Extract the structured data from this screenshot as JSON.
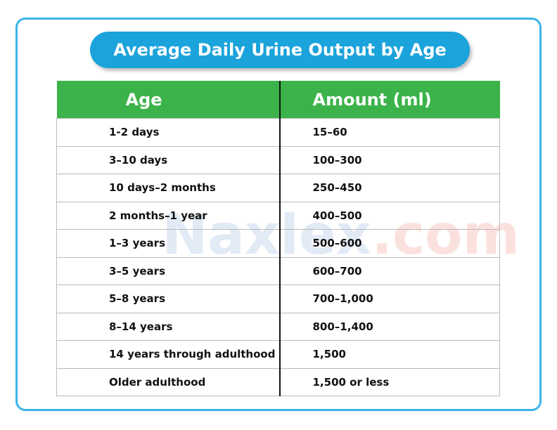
{
  "title": "Average Daily Urine Output by Age",
  "watermark": {
    "brand": "Naxlex",
    "suffix": ".com"
  },
  "table": {
    "header": [
      "Age",
      "Amount (ml)"
    ],
    "rows": [
      [
        "1-2 days",
        "15–60"
      ],
      [
        "3–10 days",
        "100–300"
      ],
      [
        "10 days–2 months",
        "250–450"
      ],
      [
        "2 months–1 year",
        "400–500"
      ],
      [
        "1–3 years",
        "500–600"
      ],
      [
        "3–5 years",
        "600–700"
      ],
      [
        "5–8 years",
        "700–1,000"
      ],
      [
        "8–14 years",
        "800–1,400"
      ],
      [
        "14 years through adulthood",
        "1,500"
      ],
      [
        "Older adulthood",
        "1,500 or less"
      ]
    ]
  }
}
